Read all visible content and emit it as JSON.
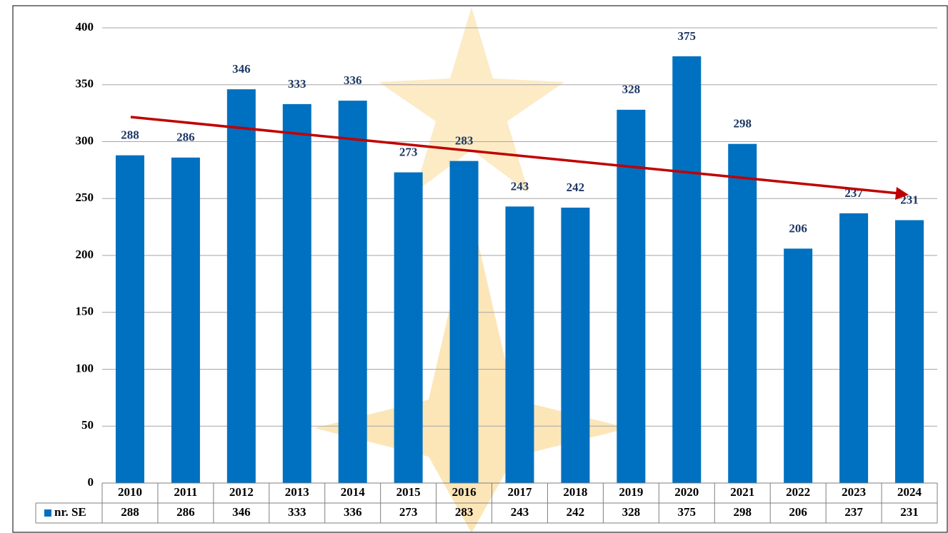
{
  "chart_data": {
    "type": "bar",
    "categories": [
      "2010",
      "2011",
      "2012",
      "2013",
      "2014",
      "2015",
      "2016",
      "2017",
      "2018",
      "2019",
      "2020",
      "2021",
      "2022",
      "2023",
      "2024"
    ],
    "series": [
      {
        "name": "nr. SE",
        "color": "#0070c0",
        "values": [
          288,
          286,
          346,
          333,
          336,
          273,
          283,
          243,
          242,
          328,
          375,
          298,
          206,
          237,
          231
        ]
      }
    ],
    "ylim": [
      0,
      400
    ],
    "yticks": [
      0,
      50,
      100,
      150,
      200,
      250,
      300,
      350,
      400
    ],
    "grid": true
  }
}
